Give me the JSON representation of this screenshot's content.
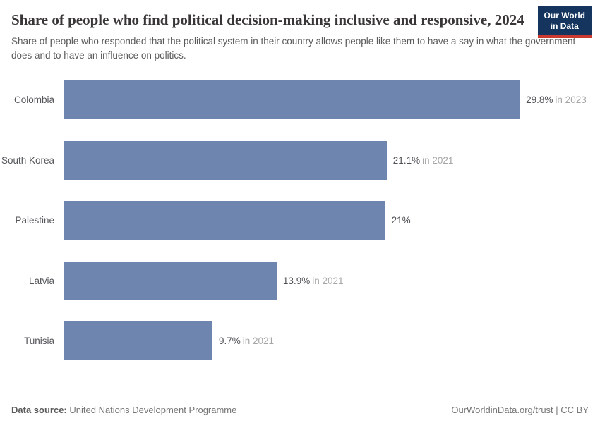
{
  "header": {
    "title": "Share of people who find political decision-making inclusive and responsive, 2024",
    "subtitle": "Share of people who responded that the political system in their country allows people like them to have a say in what the government does and to have an influence on politics.",
    "logo": {
      "line1": "Our World",
      "line2": "in Data"
    }
  },
  "chart_data": {
    "type": "bar",
    "orientation": "horizontal",
    "title": "Share of people who find political decision-making inclusive and responsive, 2024",
    "categories": [
      "Colombia",
      "South Korea",
      "Palestine",
      "Latvia",
      "Tunisia"
    ],
    "values": [
      29.8,
      21.1,
      21,
      13.9,
      9.7
    ],
    "value_labels": [
      "29.8%",
      "21.1%",
      "21%",
      "13.9%",
      "9.7%"
    ],
    "year_notes": [
      "in 2023",
      "in 2021",
      "",
      "in 2021",
      "in 2021"
    ],
    "xlim": [
      0,
      29.8
    ],
    "grid": false,
    "legend_position": "none",
    "bar_color": "#6e85af"
  },
  "colors": {
    "bar": "#6e85af",
    "logo_background": "#15355f",
    "logo_accent": "#cc392f",
    "axis_line": "#dcdfe2"
  },
  "footer": {
    "source_label": "Data source:",
    "source_value": "United Nations Development Programme",
    "link_text": "OurWorldinData.org/trust | CC BY"
  }
}
